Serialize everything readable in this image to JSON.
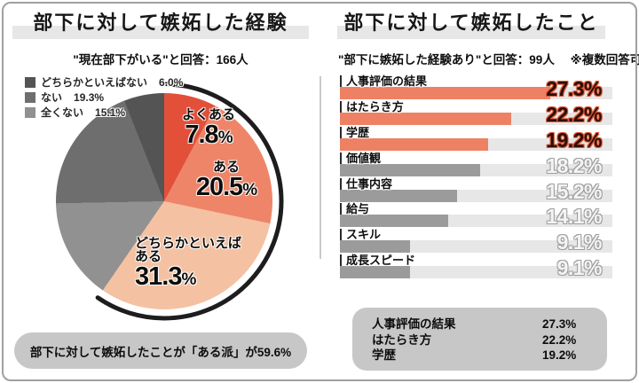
{
  "left_note": "部下に対して嫉妬したことが「ある派」が59.6%",
  "right_summary": [
    {
      "label": "人事評価の結果",
      "value": "27.3%"
    },
    {
      "label": "はたらき方",
      "value": "22.2%"
    },
    {
      "label": "学歴",
      "value": "19.2%"
    }
  ],
  "colors": {
    "accent_red": "#e2503a",
    "accent_salmon": "#ee8569",
    "accent_peach": "#f4c2a3",
    "bar_highlight": "#ee8164",
    "bar_gray": "#9b9b9b",
    "track_gray": "#e7e7e7",
    "pill_gray": "#c7c7c7",
    "arc_black": "#1d1d1d"
  },
  "chart_data": [
    {
      "type": "pie",
      "title": "部下に対して嫉妬した経験",
      "subtitle": "\"現在部下がいる\"と回答：166人",
      "start_angle_deg": 0,
      "clockwise": true,
      "slices": [
        {
          "label": "よくある",
          "value": 7.8,
          "display": "7.8%",
          "color": "#e2503a"
        },
        {
          "label": "ある",
          "value": 20.5,
          "display": "20.5%",
          "color": "#ee8569"
        },
        {
          "label": "どちらかといえばある",
          "value": 31.3,
          "display": "31.3%",
          "color": "#f4c2a3"
        },
        {
          "label": "全くない",
          "value": 15.1,
          "display": "15.1%",
          "color": "#919191"
        },
        {
          "label": "ない",
          "value": 19.3,
          "display": "19.3%",
          "color": "#6e6e6e"
        },
        {
          "label": "どちらかといえばない",
          "value": 6.0,
          "display": "6.0%",
          "color": "#545454"
        }
      ],
      "legend_order": [
        5,
        4,
        3
      ],
      "highlight_arc": {
        "covers_percent": 59.6,
        "color": "#1d1d1d",
        "meaning": "ある派"
      }
    },
    {
      "type": "bar",
      "orientation": "horizontal",
      "title": "部下に対して嫉妬したこと",
      "subtitle": "\"部下に嫉妬した経験あり\"と回答：99人",
      "note": "※複数回答可",
      "track_max_percent": 35.4,
      "bars": [
        {
          "label": "人事評価の結果",
          "value": 27.3,
          "highlighted": true,
          "color": "#ee8164"
        },
        {
          "label": "はたらき方",
          "value": 22.2,
          "highlighted": true,
          "color": "#ee8164"
        },
        {
          "label": "学歴",
          "value": 19.2,
          "highlighted": true,
          "color": "#ee8164"
        },
        {
          "label": "価値観",
          "value": 18.2,
          "highlighted": false,
          "color": "#9b9b9b"
        },
        {
          "label": "仕事内容",
          "value": 15.2,
          "highlighted": false,
          "color": "#9b9b9b"
        },
        {
          "label": "給与",
          "value": 14.1,
          "highlighted": false,
          "color": "#9b9b9b"
        },
        {
          "label": "スキル",
          "value": 9.1,
          "highlighted": false,
          "color": "#9b9b9b"
        },
        {
          "label": "成長スピード",
          "value": 9.1,
          "highlighted": false,
          "color": "#9b9b9b"
        }
      ]
    }
  ]
}
